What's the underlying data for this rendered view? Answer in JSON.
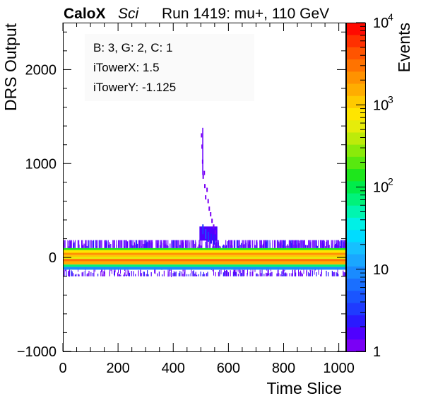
{
  "header": {
    "brand": "CaloX",
    "variant": "Sci",
    "run_info": "Run 1419: mu+, 110 GeV"
  },
  "info_box": {
    "line1": "B: 3, G: 2, C: 1",
    "line2": "iTowerX: 1.5",
    "line3": "iTowerY: -1.125"
  },
  "colorbar": {
    "title": "Events",
    "scale": "log",
    "range": [
      1,
      10000
    ],
    "ticks": [
      {
        "base": "1",
        "exp": ""
      },
      {
        "base": "10",
        "exp": ""
      },
      {
        "base": "10",
        "exp": "2"
      },
      {
        "base": "10",
        "exp": "3"
      },
      {
        "base": "10",
        "exp": "4"
      }
    ],
    "palette": [
      "#7a00f5",
      "#4f00ff",
      "#2a1aff",
      "#1f3bff",
      "#1a55ff",
      "#1a6fff",
      "#1a8bff",
      "#1aa7ff",
      "#16c0ff",
      "#00dcff",
      "#00f0e6",
      "#00f5b0",
      "#00f27a",
      "#00ec4a",
      "#1ee61c",
      "#58e80f",
      "#8aea0a",
      "#bdeb0a",
      "#e6ec0a",
      "#ffe500",
      "#ffca00",
      "#ffad00",
      "#ff9200",
      "#ff7300",
      "#ff5400",
      "#ff3000",
      "#ff0a00"
    ]
  },
  "chart_data": {
    "type": "heatmap",
    "title": "",
    "xlabel": "Time Slice",
    "ylabel": "DRS Output",
    "xlim": [
      0,
      1024
    ],
    "ylim": [
      -1000,
      2500
    ],
    "xticks": [
      "0",
      "200",
      "400",
      "600",
      "800",
      "1000"
    ],
    "yticks": [
      "−1000",
      "0",
      "1000",
      "2000"
    ],
    "bands": [
      {
        "y0": 100,
        "y1": 180,
        "events": 2
      },
      {
        "y0": 80,
        "y1": 100,
        "events": 150
      },
      {
        "y0": 50,
        "y1": 80,
        "events": 900
      },
      {
        "y0": 25,
        "y1": 50,
        "events": 2500
      },
      {
        "y0": 5,
        "y1": 25,
        "events": 1200
      },
      {
        "y0": -15,
        "y1": 5,
        "events": 500
      },
      {
        "y0": -40,
        "y1": -15,
        "events": 3000
      },
      {
        "y0": -75,
        "y1": -40,
        "events": 1500
      },
      {
        "y0": -100,
        "y1": -75,
        "events": 60
      },
      {
        "y0": -130,
        "y1": -100,
        "events": 10
      },
      {
        "y0": -200,
        "y1": -130,
        "events": 1
      }
    ],
    "pulse": {
      "description": "muon signal pulse",
      "x_start": 495,
      "x_peak": 505,
      "x_end": 560,
      "peak_value": 1380,
      "cells": [
        {
          "x": 500,
          "y": 1300,
          "events": 1
        },
        {
          "x": 502,
          "y": 1180,
          "events": 1
        },
        {
          "x": 504,
          "y": 1020,
          "events": 1
        },
        {
          "x": 506,
          "y": 860,
          "events": 1
        },
        {
          "x": 510,
          "y": 900,
          "events": 1
        },
        {
          "x": 512,
          "y": 760,
          "events": 1
        },
        {
          "x": 515,
          "y": 640,
          "events": 1
        },
        {
          "x": 520,
          "y": 720,
          "events": 1
        },
        {
          "x": 524,
          "y": 600,
          "events": 1
        },
        {
          "x": 528,
          "y": 520,
          "events": 1
        },
        {
          "x": 533,
          "y": 460,
          "events": 1
        },
        {
          "x": 538,
          "y": 390,
          "events": 1
        },
        {
          "x": 544,
          "y": 330,
          "events": 1
        },
        {
          "x": 550,
          "y": 270,
          "events": 1
        },
        {
          "x": 505,
          "y": 300,
          "events": 3
        },
        {
          "x": 515,
          "y": 250,
          "events": 4
        },
        {
          "x": 525,
          "y": 220,
          "events": 3
        },
        {
          "x": 535,
          "y": 200,
          "events": 2
        },
        {
          "x": 545,
          "y": 190,
          "events": 2
        }
      ]
    }
  }
}
